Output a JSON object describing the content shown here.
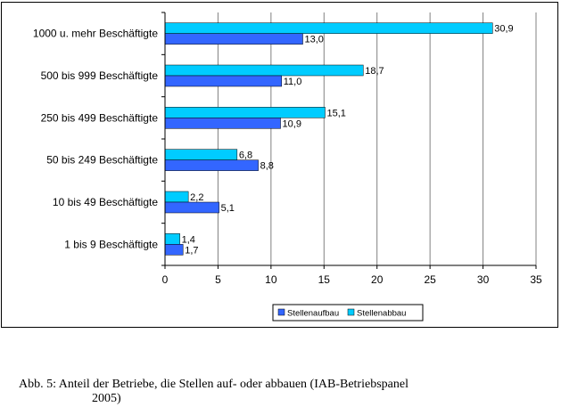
{
  "chart_data": {
    "type": "bar",
    "orientation": "horizontal",
    "categories": [
      "1000 u. mehr Beschäftigte",
      "500 bis 999 Beschäftigte",
      "250 bis 499 Beschäftigte",
      "50 bis 249 Beschäftigte",
      "10 bis 49 Beschäftigte",
      "1 bis 9 Beschäftigte"
    ],
    "series": [
      {
        "name": "Stellenabbau",
        "color": "#00ccff",
        "values": [
          30.9,
          18.7,
          15.1,
          6.8,
          2.2,
          1.4
        ],
        "labels": [
          "30,9",
          "18,7",
          "15,1",
          "6,8",
          "2,2",
          "1,4"
        ]
      },
      {
        "name": "Stellenaufbau",
        "color": "#3366ff",
        "values": [
          13.0,
          11.0,
          10.9,
          8.8,
          5.1,
          1.7
        ],
        "labels": [
          "13,0",
          "11,0",
          "10,9",
          "8,8",
          "5,1",
          "1,7"
        ]
      }
    ],
    "xlim": [
      0,
      35
    ],
    "xticks": [
      0,
      5,
      10,
      15,
      20,
      25,
      30,
      35
    ],
    "grid": "vertical",
    "legend_position": "bottom-right",
    "legend_order": [
      "Stellenaufbau",
      "Stellenabbau"
    ]
  },
  "caption": {
    "line1": "Abb. 5:  Anteil der Betriebe, die Stellen auf- oder abbauen (IAB-Betriebspanel",
    "line2": "2005)"
  }
}
